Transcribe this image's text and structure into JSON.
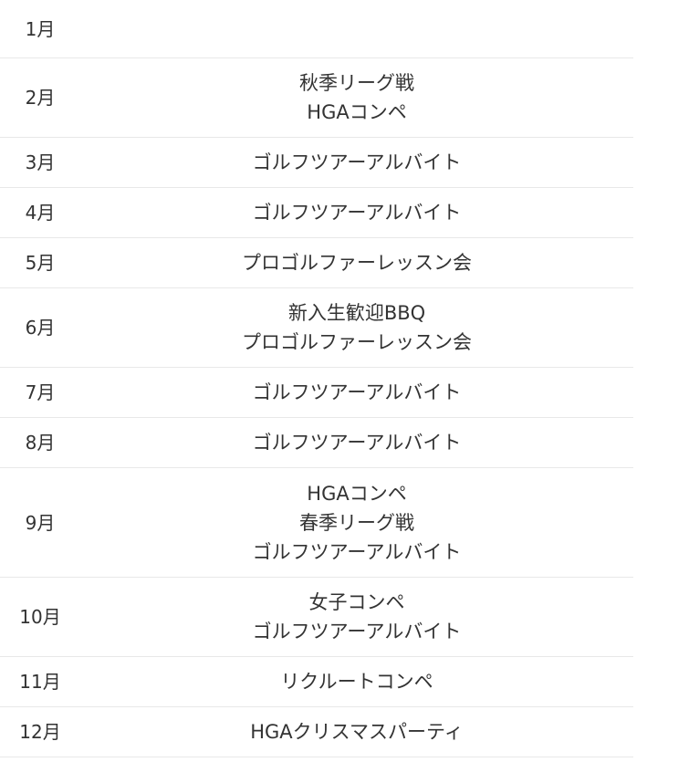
{
  "schedule": [
    {
      "month": "1月",
      "events": []
    },
    {
      "month": "2月",
      "events": [
        "秋季リーグ戦",
        "HGAコンペ"
      ]
    },
    {
      "month": "3月",
      "events": [
        "ゴルフツアーアルバイト"
      ]
    },
    {
      "month": "4月",
      "events": [
        "ゴルフツアーアルバイト"
      ]
    },
    {
      "month": "5月",
      "events": [
        "プロゴルファーレッスン会"
      ]
    },
    {
      "month": "6月",
      "events": [
        "新入生歓迎BBQ",
        "プロゴルファーレッスン会"
      ]
    },
    {
      "month": "7月",
      "events": [
        "ゴルフツアーアルバイト"
      ]
    },
    {
      "month": "8月",
      "events": [
        "ゴルフツアーアルバイト"
      ]
    },
    {
      "month": "9月",
      "events": [
        "HGAコンペ",
        "春季リーグ戦",
        "ゴルフツアーアルバイト"
      ]
    },
    {
      "month": "10月",
      "events": [
        "女子コンペ",
        "ゴルフツアーアルバイト"
      ]
    },
    {
      "month": "11月",
      "events": [
        "リクルートコンペ"
      ]
    },
    {
      "month": "12月",
      "events": [
        "HGAクリスマスパーティ"
      ]
    }
  ]
}
